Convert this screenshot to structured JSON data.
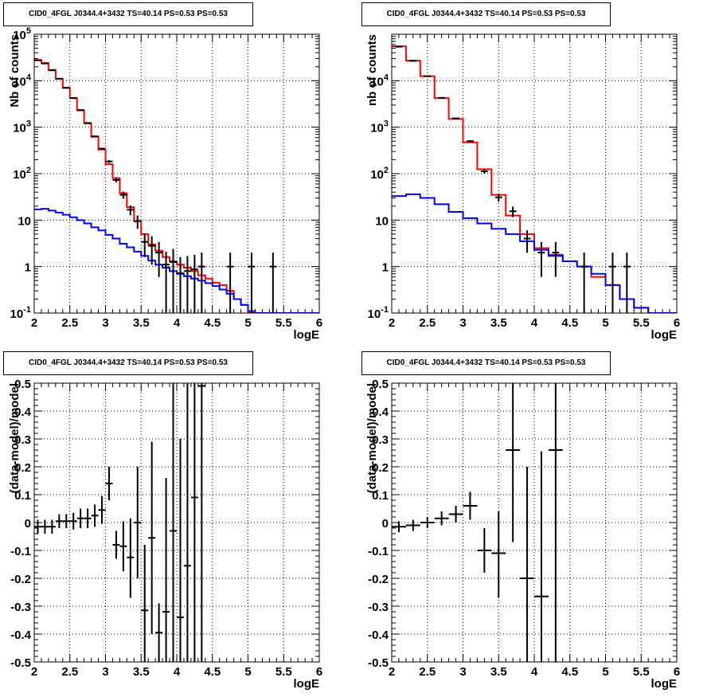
{
  "chart_data": [
    {
      "type": "histogram",
      "panel": "top-left",
      "title": "CID0_4FGL J0344.4+3432 TS=40.14 PS=0.53 PS=0.53",
      "xlabel": "logE",
      "ylabel": "Nb of counts",
      "xlim": [
        2,
        6
      ],
      "ylim": [
        0.1,
        100000
      ],
      "yscale": "log",
      "grid": true,
      "x_ticks": [
        "2",
        "2.5",
        "3",
        "3.5",
        "4",
        "4.5",
        "5",
        "5.5",
        "6"
      ],
      "y_ticks": [
        "10^-1",
        "1",
        "10",
        "10^2",
        "10^3",
        "10^4",
        "10^5"
      ],
      "bin_edges": [
        2.0,
        2.1,
        2.2,
        2.3,
        2.4,
        2.5,
        2.6,
        2.7,
        2.8,
        2.9,
        3.0,
        3.1,
        3.2,
        3.3,
        3.4,
        3.5,
        3.6,
        3.7,
        3.8,
        3.9,
        4.0,
        4.1,
        4.2,
        4.3,
        4.4,
        4.5,
        4.6,
        4.7,
        4.8,
        4.9,
        5.0,
        5.1,
        5.2,
        5.3,
        5.4,
        5.5,
        5.6,
        5.7,
        5.8,
        5.9,
        6.0
      ],
      "series": [
        {
          "kind": "step",
          "color": "#ff0000",
          "values": [
            28000,
            24000,
            17000,
            11000,
            7000,
            4200,
            2300,
            1200,
            620,
            330,
            160,
            80,
            38,
            19,
            9.5,
            5,
            3,
            2.2,
            1.6,
            1.3,
            1.1,
            0.95,
            0.8,
            0.65,
            0.55,
            0.45,
            0.4,
            0.3,
            0.2,
            0.15,
            0.1,
            0.1,
            0.1,
            0.1,
            0.1,
            0.1,
            0.1,
            0.1,
            0.1,
            0.1
          ]
        },
        {
          "kind": "step",
          "color": "#0000ff",
          "values": [
            17,
            17.5,
            16,
            14.5,
            13,
            11.5,
            10,
            8.5,
            7,
            6,
            4.8,
            4,
            3.1,
            2.6,
            2.1,
            1.7,
            1.35,
            1.1,
            0.95,
            0.8,
            0.7,
            0.62,
            0.55,
            0.5,
            0.44,
            0.38,
            0.32,
            0.26,
            0.2,
            0.15,
            0.11,
            0.1,
            0.1,
            0.1,
            0.1,
            0.1,
            0.1,
            0.1,
            0.1,
            0.1
          ]
        },
        {
          "kind": "points",
          "color": "#000000",
          "points": [
            {
              "x": 2.05,
              "y": 27500,
              "lo": 27330,
              "hi": 27670
            },
            {
              "x": 2.15,
              "y": 23500,
              "lo": 23350,
              "hi": 23650
            },
            {
              "x": 2.25,
              "y": 16800,
              "lo": 16670,
              "hi": 16930
            },
            {
              "x": 2.35,
              "y": 11050,
              "lo": 10950,
              "hi": 11150
            },
            {
              "x": 2.45,
              "y": 7050,
              "lo": 6970,
              "hi": 7130
            },
            {
              "x": 2.55,
              "y": 4230,
              "lo": 4165,
              "hi": 4295
            },
            {
              "x": 2.65,
              "y": 2340,
              "lo": 2290,
              "hi": 2390
            },
            {
              "x": 2.75,
              "y": 1230,
              "lo": 1195,
              "hi": 1265
            },
            {
              "x": 2.85,
              "y": 635,
              "lo": 610,
              "hi": 660
            },
            {
              "x": 2.95,
              "y": 345,
              "lo": 327,
              "hi": 363
            },
            {
              "x": 3.05,
              "y": 183,
              "lo": 170,
              "hi": 196
            },
            {
              "x": 3.15,
              "y": 73,
              "lo": 65,
              "hi": 82
            },
            {
              "x": 3.25,
              "y": 35,
              "lo": 29,
              "hi": 41
            },
            {
              "x": 3.35,
              "y": 16.7,
              "lo": 12.7,
              "hi": 20.7
            },
            {
              "x": 3.45,
              "y": 9.5,
              "lo": 6.5,
              "hi": 12.5
            },
            {
              "x": 3.55,
              "y": 3.4,
              "lo": 1.6,
              "hi": 5.2
            },
            {
              "x": 3.65,
              "y": 2.8,
              "lo": 1.1,
              "hi": 4.5
            },
            {
              "x": 3.75,
              "y": 2.0,
              "lo": 0.6,
              "hi": 3.4
            },
            {
              "x": 3.85,
              "y": 1.1,
              "lo": 0.1,
              "hi": 2.1
            },
            {
              "x": 3.95,
              "y": 1.25,
              "lo": 0.1,
              "hi": 2.4
            },
            {
              "x": 4.05,
              "y": 0.72,
              "lo": 0.1,
              "hi": 1.6
            },
            {
              "x": 4.15,
              "y": 0.8,
              "lo": 0.1,
              "hi": 1.7
            },
            {
              "x": 4.25,
              "y": 0.87,
              "lo": 0.1,
              "hi": 1.8
            },
            {
              "x": 4.35,
              "y": 1.0,
              "lo": 0.1,
              "hi": 2.0
            },
            {
              "x": 4.75,
              "y": 1.0,
              "lo": 0.1,
              "hi": 2.0
            },
            {
              "x": 5.05,
              "y": 1.0,
              "lo": 0.1,
              "hi": 2.0
            },
            {
              "x": 5.35,
              "y": 1.0,
              "lo": 0.1,
              "hi": 2.0
            }
          ]
        }
      ]
    },
    {
      "type": "histogram",
      "panel": "top-right",
      "title": "CID0_4FGL J0344.4+3432 TS=40.14 PS=0.53 PS=0.53",
      "xlabel": "logE",
      "ylabel": "nb of counts",
      "xlim": [
        2,
        6
      ],
      "ylim": [
        0.1,
        100000
      ],
      "yscale": "log",
      "grid": true,
      "x_ticks": [
        "2",
        "2.5",
        "3",
        "3.5",
        "4",
        "4.5",
        "5",
        "5.5",
        "6"
      ],
      "y_ticks": [
        "10^-1",
        "1",
        "10",
        "10^2",
        "10^3",
        "10^4"
      ],
      "bin_edges": [
        2.0,
        2.2,
        2.4,
        2.6,
        2.8,
        3.0,
        3.2,
        3.4,
        3.6,
        3.8,
        4.0,
        4.2,
        4.4,
        4.6,
        4.8,
        5.0,
        5.2,
        5.4,
        5.6,
        5.8,
        6.0
      ],
      "series": [
        {
          "kind": "step",
          "color": "#ff0000",
          "values": [
            55000,
            27000,
            12500,
            4200,
            1500,
            470,
            125,
            35,
            12.5,
            5,
            2.5,
            1.8,
            1.3,
            1.0,
            0.6,
            0.4,
            0.2,
            0.13,
            0.1,
            0.1
          ]
        },
        {
          "kind": "step",
          "color": "#0000ff",
          "values": [
            33,
            36,
            30,
            22,
            15,
            11,
            8.5,
            6.5,
            5,
            3.5,
            2.3,
            1.7,
            1.3,
            1.0,
            0.7,
            0.4,
            0.2,
            0.13,
            0.1,
            0.1
          ]
        },
        {
          "kind": "points",
          "color": "#000000",
          "points": [
            {
              "x": 2.1,
              "y": 54000,
              "lo": 53770,
              "hi": 54230
            },
            {
              "x": 2.3,
              "y": 26700,
              "lo": 26540,
              "hi": 26860
            },
            {
              "x": 2.5,
              "y": 12500,
              "lo": 12390,
              "hi": 12610
            },
            {
              "x": 2.7,
              "y": 4280,
              "lo": 4215,
              "hi": 4345
            },
            {
              "x": 2.9,
              "y": 1550,
              "lo": 1510,
              "hi": 1590
            },
            {
              "x": 3.1,
              "y": 500,
              "lo": 478,
              "hi": 522
            },
            {
              "x": 3.3,
              "y": 112,
              "lo": 101,
              "hi": 123
            },
            {
              "x": 3.5,
              "y": 31,
              "lo": 25,
              "hi": 37
            },
            {
              "x": 3.7,
              "y": 15.5,
              "lo": 11.5,
              "hi": 19.5
            },
            {
              "x": 3.9,
              "y": 4.0,
              "lo": 2.0,
              "hi": 6.0
            },
            {
              "x": 4.1,
              "y": 2.0,
              "lo": 0.6,
              "hi": 3.4
            },
            {
              "x": 4.3,
              "y": 2.0,
              "lo": 0.6,
              "hi": 3.4
            },
            {
              "x": 4.7,
              "y": 1.0,
              "lo": 0.1,
              "hi": 2.0
            },
            {
              "x": 5.1,
              "y": 1.0,
              "lo": 0.1,
              "hi": 2.0
            },
            {
              "x": 5.3,
              "y": 1.0,
              "lo": 0.1,
              "hi": 2.0
            }
          ]
        }
      ]
    },
    {
      "type": "scatter",
      "panel": "bottom-left",
      "title": "CID0_4FGL J0344.4+3432 TS=40.14 PS=0.53 PS=0.53",
      "xlabel": "logE",
      "ylabel": "(data-model)/model",
      "xlim": [
        2,
        6
      ],
      "ylim": [
        -0.5,
        0.5
      ],
      "yscale": "linear",
      "grid": true,
      "x_ticks": [
        "2",
        "2.5",
        "3",
        "3.5",
        "4",
        "4.5",
        "5",
        "5.5",
        "6"
      ],
      "y_ticks": [
        "-0.5",
        "-0.4",
        "-0.3",
        "-0.2",
        "-0.1",
        "0",
        "0.1",
        "0.2",
        "0.3",
        "0.4",
        "0.5"
      ],
      "series": [
        {
          "kind": "points",
          "color": "#000000",
          "xerr": 0.05,
          "points": [
            {
              "x": 2.05,
              "y": -0.015,
              "lo": -0.04,
              "hi": 0.01
            },
            {
              "x": 2.15,
              "y": -0.015,
              "lo": -0.04,
              "hi": 0.01
            },
            {
              "x": 2.25,
              "y": -0.015,
              "lo": -0.04,
              "hi": 0.01
            },
            {
              "x": 2.35,
              "y": 0.005,
              "lo": -0.02,
              "hi": 0.03
            },
            {
              "x": 2.45,
              "y": 0.005,
              "lo": -0.02,
              "hi": 0.03
            },
            {
              "x": 2.55,
              "y": 0.005,
              "lo": -0.025,
              "hi": 0.035
            },
            {
              "x": 2.65,
              "y": 0.015,
              "lo": -0.02,
              "hi": 0.05
            },
            {
              "x": 2.75,
              "y": 0.015,
              "lo": -0.02,
              "hi": 0.05
            },
            {
              "x": 2.85,
              "y": 0.025,
              "lo": -0.015,
              "hi": 0.065
            },
            {
              "x": 2.95,
              "y": 0.045,
              "lo": -0.005,
              "hi": 0.095
            },
            {
              "x": 3.05,
              "y": 0.14,
              "lo": 0.08,
              "hi": 0.2
            },
            {
              "x": 3.15,
              "y": -0.08,
              "lo": -0.13,
              "hi": -0.03
            },
            {
              "x": 3.25,
              "y": -0.085,
              "lo": -0.175,
              "hi": 0.005
            },
            {
              "x": 3.35,
              "y": -0.125,
              "lo": -0.27,
              "hi": 0.015
            },
            {
              "x": 3.45,
              "y": 0.0,
              "lo": -0.2,
              "hi": 0.2
            },
            {
              "x": 3.55,
              "y": -0.315,
              "lo": -0.5,
              "hi": -0.08
            },
            {
              "x": 3.65,
              "y": -0.055,
              "lo": -0.4,
              "hi": 0.29
            },
            {
              "x": 3.75,
              "y": -0.395,
              "lo": -0.5,
              "hi": -0.29
            },
            {
              "x": 3.85,
              "y": -0.32,
              "lo": -0.5,
              "hi": 0.16
            },
            {
              "x": 3.95,
              "y": -0.03,
              "lo": -0.5,
              "hi": 0.5
            },
            {
              "x": 4.05,
              "y": -0.34,
              "lo": -0.5,
              "hi": 0.3
            },
            {
              "x": 4.15,
              "y": -0.155,
              "lo": -0.5,
              "hi": 0.5
            },
            {
              "x": 4.25,
              "y": 0.09,
              "lo": -0.5,
              "hi": 0.5
            },
            {
              "x": 4.35,
              "y": 0.49,
              "lo": -0.5,
              "hi": 0.5
            }
          ]
        }
      ]
    },
    {
      "type": "scatter",
      "panel": "bottom-right",
      "title": "CID0_4FGL J0344.4+3432 TS=40.14 PS=0.53 PS=0.53",
      "xlabel": "logE",
      "ylabel": "(data-model)/model",
      "xlim": [
        2,
        6
      ],
      "ylim": [
        -0.5,
        0.5
      ],
      "yscale": "linear",
      "grid": true,
      "x_ticks": [
        "2",
        "2.5",
        "3",
        "3.5",
        "4",
        "4.5",
        "5",
        "5.5",
        "6"
      ],
      "y_ticks": [
        "-0.5",
        "-0.4",
        "-0.3",
        "-0.2",
        "-0.1",
        "0",
        "0.1",
        "0.2",
        "0.3",
        "0.4",
        "0.5"
      ],
      "series": [
        {
          "kind": "points",
          "color": "#000000",
          "xerr": 0.1,
          "points": [
            {
              "x": 2.1,
              "y": -0.015,
              "lo": -0.035,
              "hi": 0.005
            },
            {
              "x": 2.3,
              "y": -0.01,
              "lo": -0.03,
              "hi": 0.01
            },
            {
              "x": 2.5,
              "y": 0.0,
              "lo": -0.02,
              "hi": 0.02
            },
            {
              "x": 2.7,
              "y": 0.015,
              "lo": -0.01,
              "hi": 0.04
            },
            {
              "x": 2.9,
              "y": 0.03,
              "lo": 0.0,
              "hi": 0.06
            },
            {
              "x": 3.1,
              "y": 0.06,
              "lo": 0.01,
              "hi": 0.11
            },
            {
              "x": 3.3,
              "y": -0.1,
              "lo": -0.18,
              "hi": -0.02
            },
            {
              "x": 3.5,
              "y": -0.11,
              "lo": -0.27,
              "hi": 0.04
            },
            {
              "x": 3.7,
              "y": 0.26,
              "lo": -0.07,
              "hi": 0.5
            },
            {
              "x": 3.9,
              "y": -0.2,
              "lo": -0.5,
              "hi": 0.2
            },
            {
              "x": 4.1,
              "y": -0.265,
              "lo": -0.5,
              "hi": 0.255
            },
            {
              "x": 4.3,
              "y": 0.26,
              "lo": -0.5,
              "hi": 0.5
            }
          ]
        }
      ]
    }
  ]
}
